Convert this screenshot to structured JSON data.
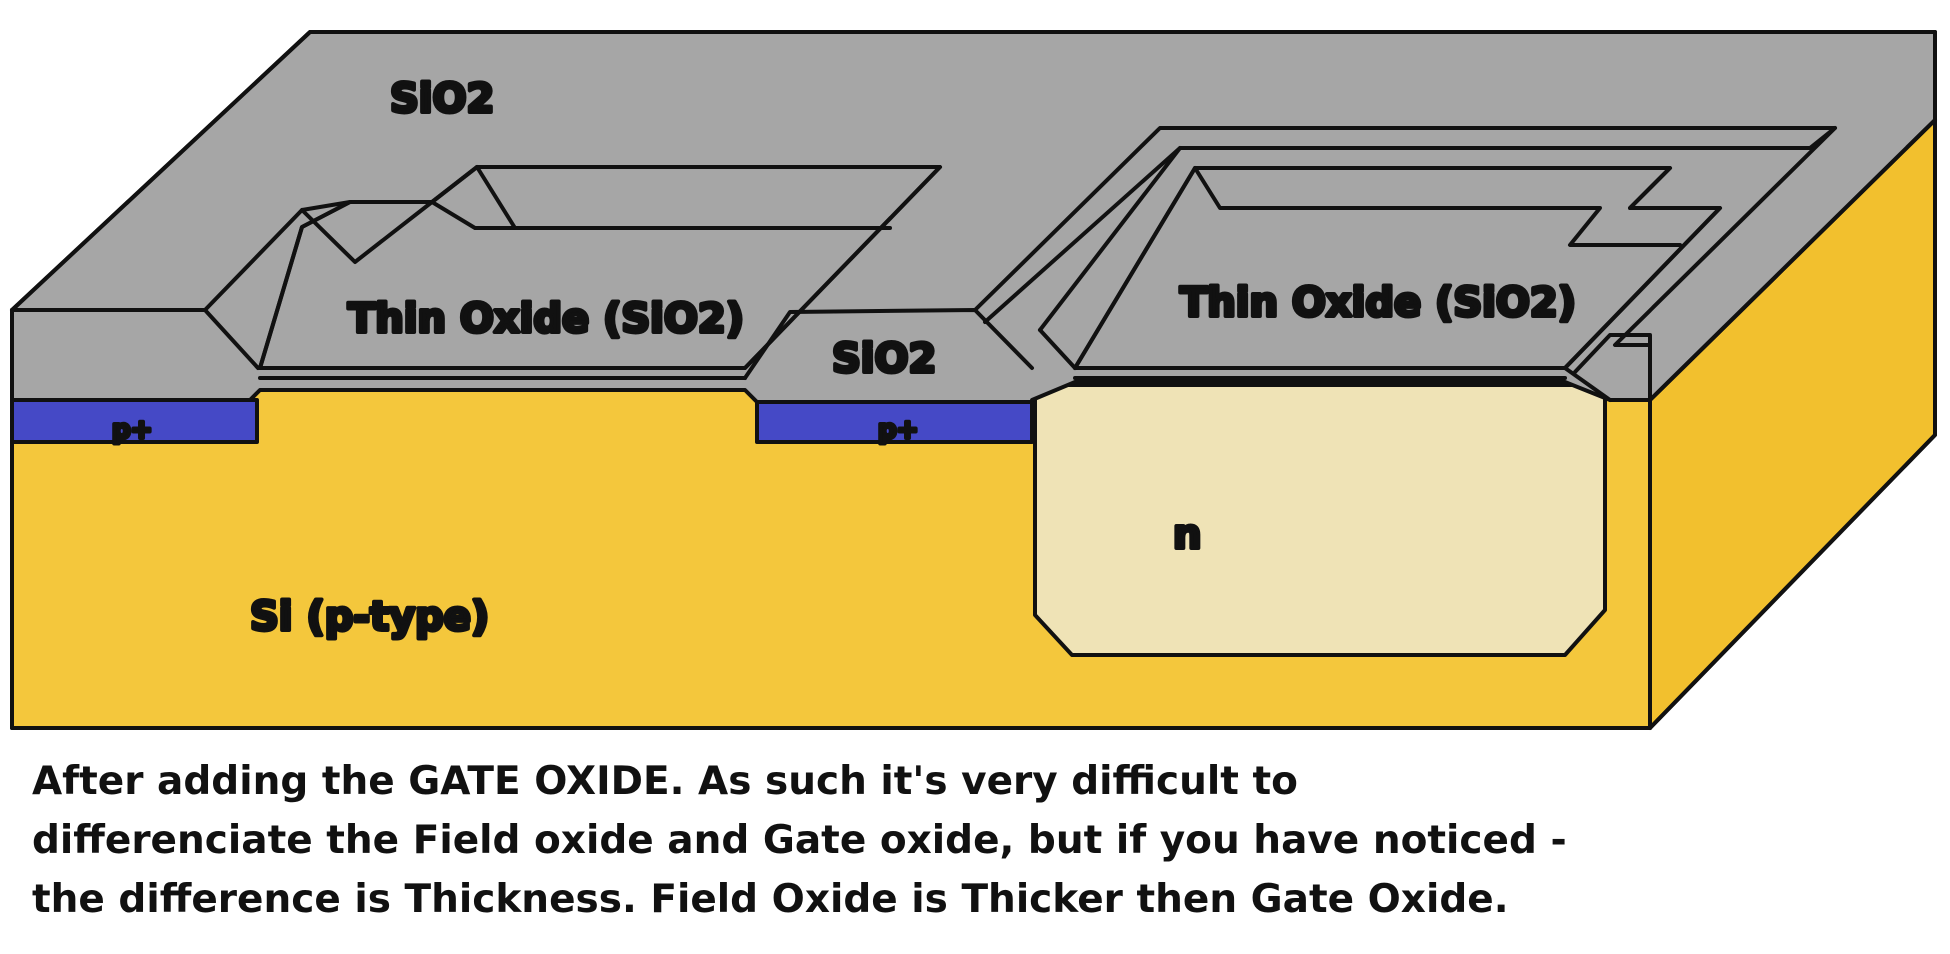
{
  "diagram": {
    "labels": {
      "sio2_top": "SiO2",
      "thin_oxide_left": "Thin Oxide (SiO2)",
      "sio2_middle": "SiO2",
      "thin_oxide_right": "Thin Oxide (SiO2)",
      "p_plus_left": "p+",
      "p_plus_right": "p+",
      "n_well": "n",
      "substrate": "Si (p-type)"
    },
    "colors": {
      "oxide": "#a6a6a6",
      "substrate": "#f4c73c",
      "substrate_side": "#f2c02e",
      "n_well": "#efe3b6",
      "p_plus": "#4549c6",
      "outline": "#111111"
    }
  },
  "caption": {
    "lines": [
      "After adding the GATE OXIDE. As such it's very difficult to",
      "differenciate the Field oxide and Gate oxide, but if you have noticed -",
      "the difference is Thickness. Field Oxide is Thicker then Gate Oxide."
    ]
  }
}
